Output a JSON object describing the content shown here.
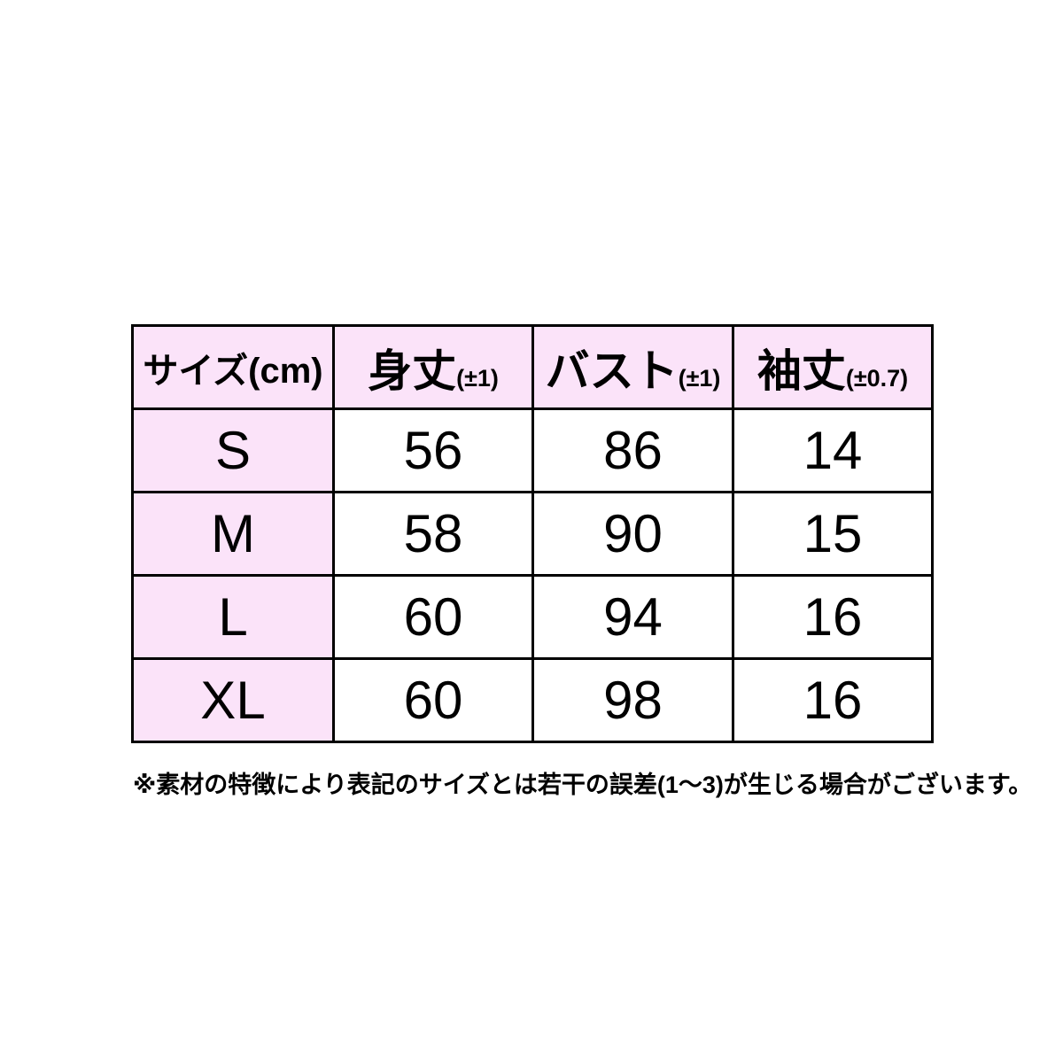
{
  "page": {
    "background": "#ffffff"
  },
  "table": {
    "header_bg": "#fbe3f9",
    "border_color": "#000000",
    "text_color": "#000000",
    "headers": [
      {
        "label": "サイズ(cm)",
        "tolerance": ""
      },
      {
        "label": "身丈",
        "tolerance": "(±1)"
      },
      {
        "label": "バスト",
        "tolerance": "(±1)"
      },
      {
        "label": "袖丈",
        "tolerance": "(±0.7)"
      }
    ],
    "rows": [
      {
        "size": "S",
        "body_length": "56",
        "bust": "86",
        "sleeve": "14"
      },
      {
        "size": "M",
        "body_length": "58",
        "bust": "90",
        "sleeve": "15"
      },
      {
        "size": "L",
        "body_length": "60",
        "bust": "94",
        "sleeve": "16"
      },
      {
        "size": "XL",
        "body_length": "60",
        "bust": "98",
        "sleeve": "16"
      }
    ]
  },
  "footnote": "※素材の特徴により表記のサイズとは若干の誤差(1〜3)が生じる場合がございます。"
}
